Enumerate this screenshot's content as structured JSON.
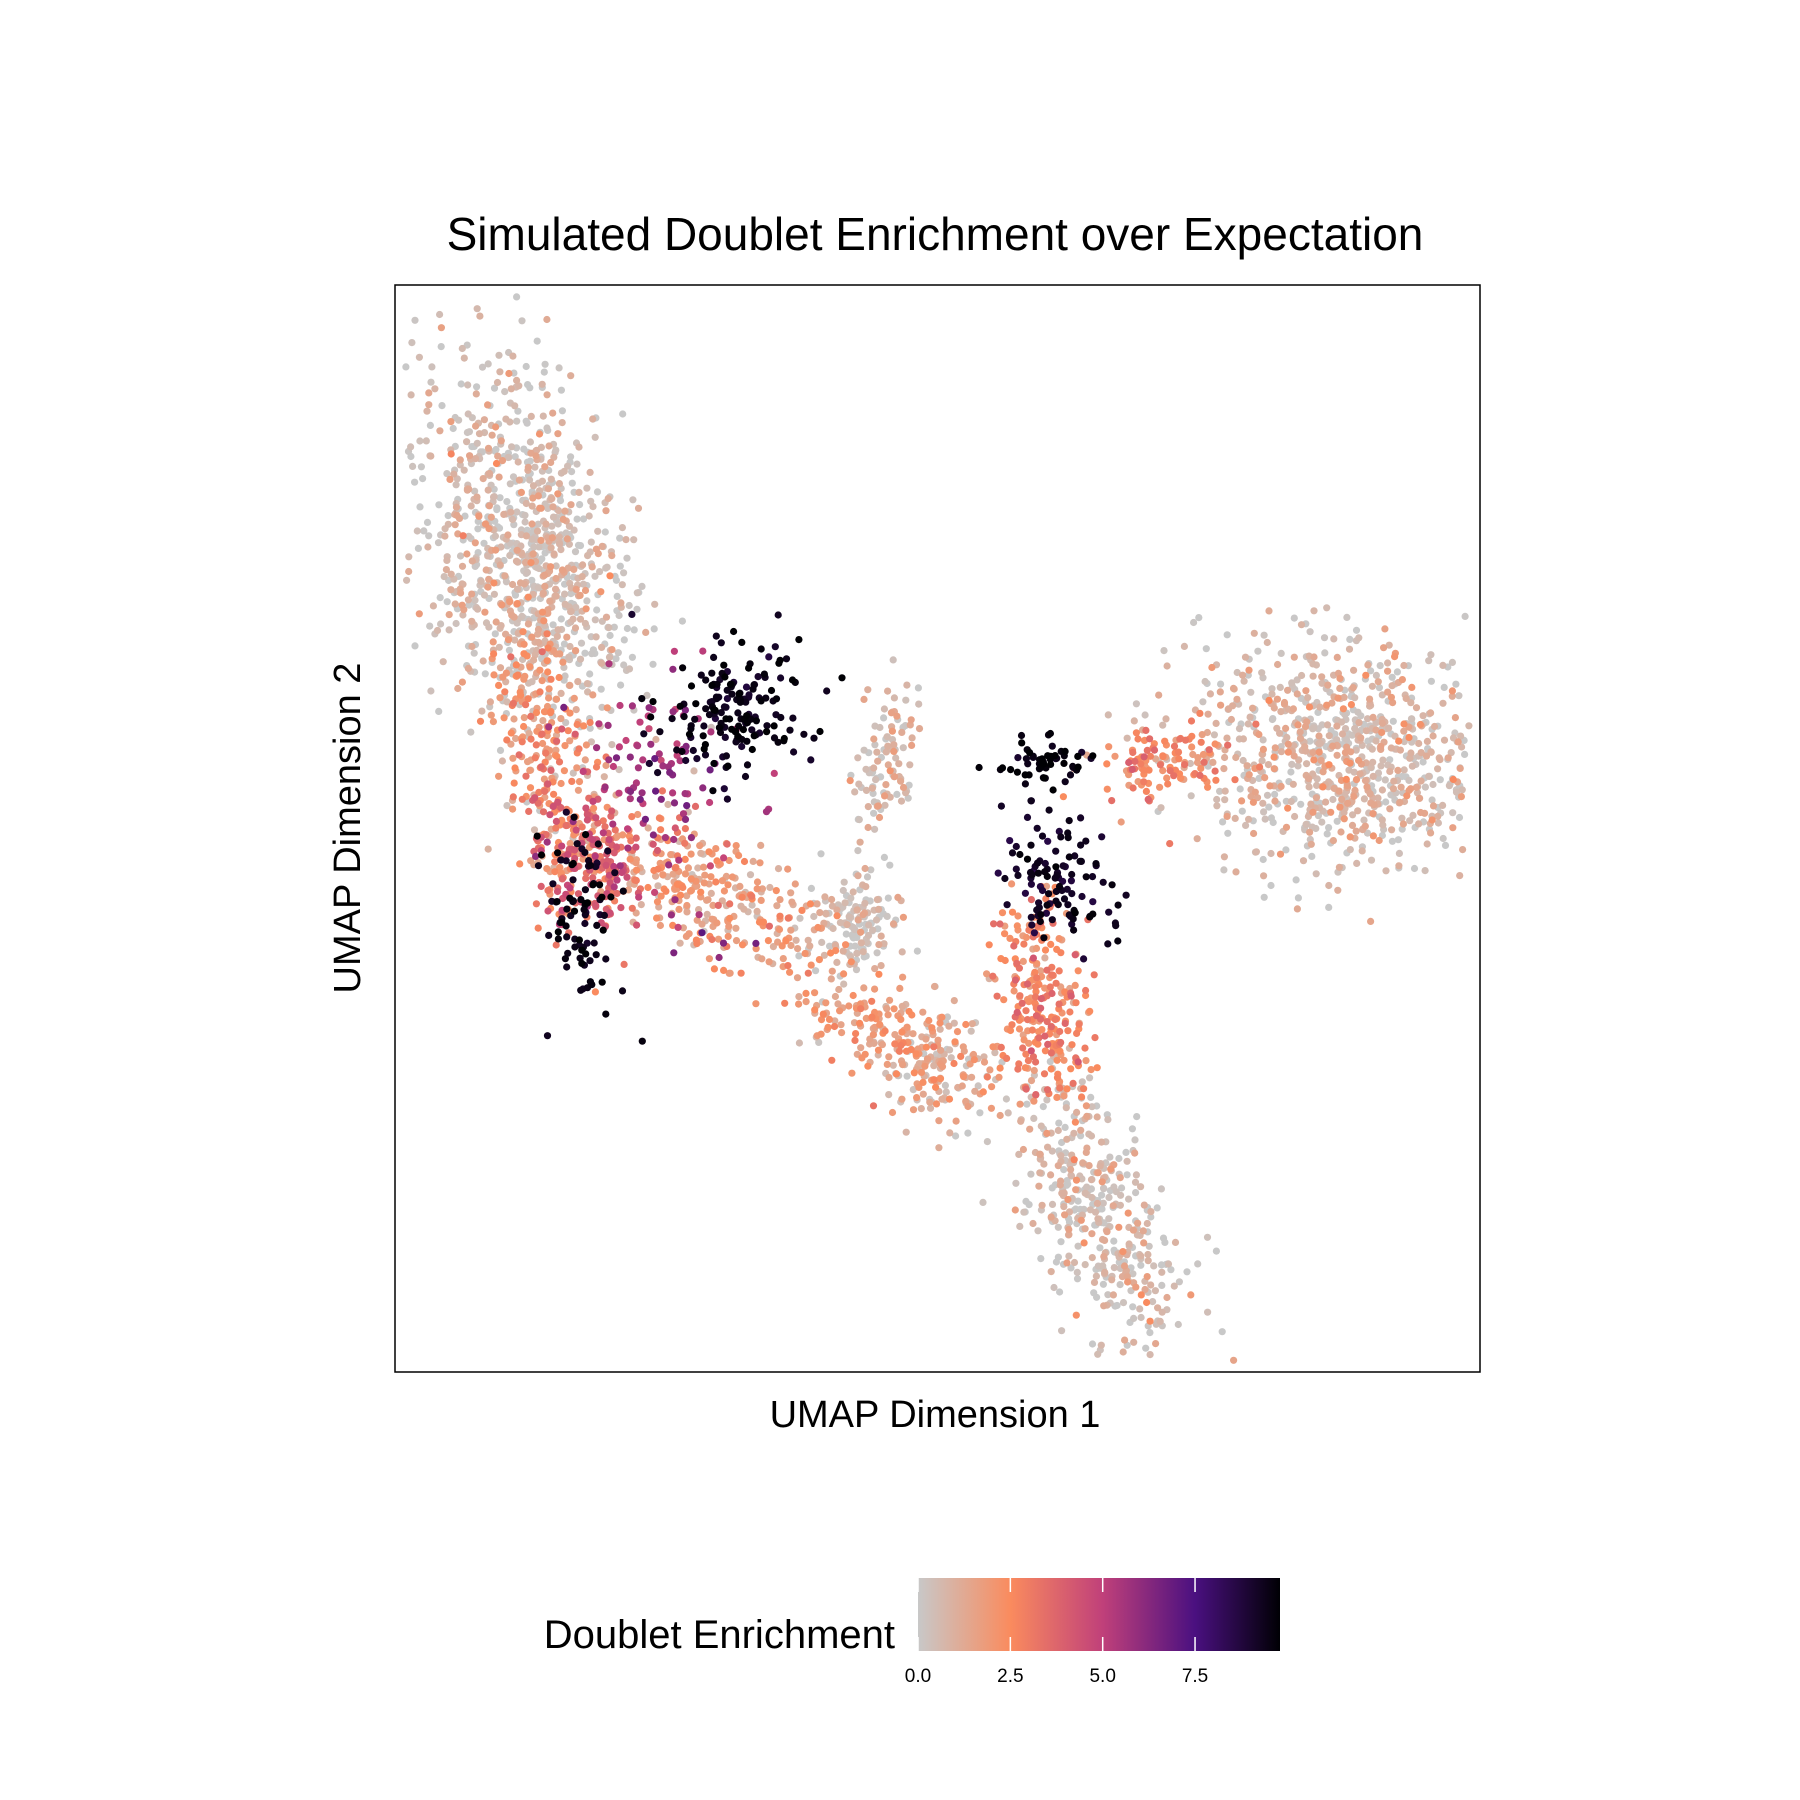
{
  "chart_data": {
    "type": "scatter",
    "title": "Simulated Doublet Enrichment over Expectation",
    "xlabel": "UMAP Dimension 1",
    "ylabel": "UMAP Dimension 2",
    "xlim": [
      0,
      100
    ],
    "ylim": [
      0,
      100
    ],
    "axis_ticks": "none",
    "grid": false,
    "legend": {
      "title": "Doublet Enrichment",
      "position": "bottom",
      "type": "colorbar",
      "range": [
        0,
        9.8
      ],
      "ticks": [
        0,
        2.5,
        5,
        7.5
      ],
      "tick_labels": [
        "0.0",
        "2.5",
        "5.0",
        "7.5"
      ]
    },
    "colorscale": [
      {
        "value": 0.0,
        "color": "#c8c8c8"
      },
      {
        "value": 2.5,
        "color": "#fa8b5e"
      },
      {
        "value": 5.0,
        "color": "#c0407a"
      },
      {
        "value": 7.5,
        "color": "#4a1080"
      },
      {
        "value": 9.8,
        "color": "#000004"
      }
    ],
    "regions": [
      {
        "label": "top-left cluster",
        "center": [
          12,
          75
        ],
        "spread": [
          4.5,
          9
        ],
        "rotation": 0.25,
        "value": 0.4,
        "n": 950
      },
      {
        "label": "left arm",
        "center": [
          14,
          56
        ],
        "spread": [
          2.2,
          7
        ],
        "rotation": 0.2,
        "value": 2.3,
        "n": 260
      },
      {
        "label": "left arm lower",
        "center": [
          18,
          47
        ],
        "spread": [
          2.5,
          3.5
        ],
        "rotation": 0.3,
        "value": 3.8,
        "n": 160
      },
      {
        "label": "doublet block left-upper",
        "center": [
          31,
          61
        ],
        "spread": [
          3.5,
          3
        ],
        "rotation": 0.1,
        "value": 9.5,
        "n": 170
      },
      {
        "label": "doublet block left-lower",
        "center": [
          17,
          42
        ],
        "spread": [
          1.8,
          4
        ],
        "rotation": 0.1,
        "value": 9.5,
        "n": 90
      },
      {
        "label": "magenta scatter",
        "center": [
          24,
          53
        ],
        "spread": [
          4,
          6
        ],
        "rotation": 0,
        "value": 5.5,
        "n": 110
      },
      {
        "label": "central band",
        "center": [
          29,
          44
        ],
        "spread": [
          6,
          2.5
        ],
        "rotation": -0.45,
        "value": 1.8,
        "n": 300
      },
      {
        "label": "central dense",
        "center": [
          42,
          41
        ],
        "spread": [
          2.2,
          2.2
        ],
        "rotation": 0,
        "value": 0.3,
        "n": 140
      },
      {
        "label": "central stalk",
        "center": [
          45,
          55
        ],
        "spread": [
          1.2,
          4
        ],
        "rotation": -0.2,
        "value": 0.6,
        "n": 110
      },
      {
        "label": "lower band",
        "center": [
          46,
          31
        ],
        "spread": [
          6,
          2
        ],
        "rotation": -0.35,
        "value": 1.8,
        "n": 180
      },
      {
        "label": "right cluster",
        "center": [
          87,
          57
        ],
        "spread": [
          7,
          5
        ],
        "rotation": -0.1,
        "value": 0.6,
        "n": 820
      },
      {
        "label": "right arm",
        "center": [
          71,
          56
        ],
        "spread": [
          3.5,
          1.8
        ],
        "rotation": 0.1,
        "value": 2.4,
        "n": 120
      },
      {
        "label": "doublet right-top",
        "center": [
          60,
          56
        ],
        "spread": [
          2.2,
          1
        ],
        "rotation": 0,
        "value": 9.6,
        "n": 55
      },
      {
        "label": "doublet right-mid",
        "center": [
          61,
          45
        ],
        "spread": [
          2.2,
          3.5
        ],
        "rotation": 0.5,
        "value": 9.2,
        "n": 110
      },
      {
        "label": "right mid band",
        "center": [
          60,
          34
        ],
        "spread": [
          2,
          5
        ],
        "rotation": 0.15,
        "value": 2.6,
        "n": 260
      },
      {
        "label": "bottom tail",
        "center": [
          65,
          14
        ],
        "spread": [
          3,
          7
        ],
        "rotation": 0.45,
        "value": 0.4,
        "n": 420
      },
      {
        "label": "lower middle",
        "center": [
          50,
          28
        ],
        "spread": [
          3,
          3
        ],
        "rotation": 0,
        "value": 0.9,
        "n": 120
      }
    ]
  }
}
